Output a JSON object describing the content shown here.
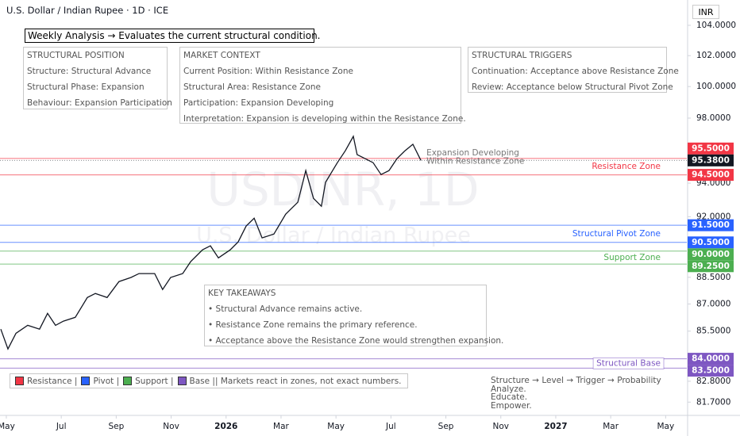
{
  "chart_data": {
    "type": "line",
    "title": "U.S. Dollar / Indian Rupee · 1D · ICE",
    "currency": "INR",
    "watermark": [
      "USDINR, 1D",
      "U.S. Dollar / Indian Rupee"
    ],
    "headline": "Weekly Analysis → Evaluates the current structural condition.",
    "color": "#131722",
    "x": [
      -0.2,
      0.06,
      0.35,
      0.78,
      1.21,
      1.5,
      1.79,
      2.08,
      2.51,
      2.95,
      3.24,
      3.67,
      4.1,
      4.54,
      4.83,
      5.4,
      5.69,
      5.98,
      6.42,
      6.71,
      7.14,
      7.43,
      7.72,
      8.15,
      8.44,
      8.73,
      9.02,
      9.31,
      9.74,
      10.17,
      10.61,
      10.9,
      11.18,
      11.47,
      11.62,
      12.05,
      12.34,
      12.63,
      12.77,
      13.06,
      13.35,
      13.64,
      13.93,
      14.22,
      14.51,
      14.8,
      15.09
    ],
    "values": [
      85.61,
      84.53,
      85.38,
      85.82,
      85.61,
      86.48,
      85.82,
      86.05,
      86.26,
      87.36,
      87.59,
      87.36,
      88.26,
      88.49,
      88.71,
      88.71,
      87.81,
      88.49,
      88.71,
      89.39,
      90.07,
      90.3,
      89.61,
      90.07,
      90.53,
      91.45,
      91.91,
      90.76,
      90.99,
      92.15,
      92.86,
      94.76,
      93.09,
      92.62,
      94.05,
      95.24,
      95.97,
      96.86,
      95.73,
      95.49,
      95.24,
      94.52,
      94.76,
      95.49,
      95.97,
      96.37,
      95.38
    ],
    "last_price": {
      "value": 95.38,
      "label": "95.3800"
    },
    "annotation": [
      "Expansion Developing",
      "Within Resistance Zone"
    ],
    "log_scale": true,
    "grid": false,
    "xlim": [
      -0.23,
      24.77
    ],
    "xticks": [
      {
        "value": 0,
        "label": "May"
      },
      {
        "value": 2,
        "label": "Jul"
      },
      {
        "value": 4,
        "label": "Sep"
      },
      {
        "value": 6,
        "label": "Nov"
      },
      {
        "value": 8,
        "label": "2026"
      },
      {
        "value": 10,
        "label": "Mar"
      },
      {
        "value": 12,
        "label": "May"
      },
      {
        "value": 14,
        "label": "Jul"
      },
      {
        "value": 16,
        "label": "Sep"
      },
      {
        "value": 18,
        "label": "Nov"
      },
      {
        "value": 20,
        "label": "2027"
      },
      {
        "value": 22,
        "label": "Mar"
      },
      {
        "value": 24,
        "label": "May"
      }
    ],
    "ylim": [
      81.05,
      105.7
    ],
    "yticks": [
      {
        "value": 104,
        "label": "104.0000"
      },
      {
        "value": 102,
        "label": "102.0000"
      },
      {
        "value": 100,
        "label": "100.0000"
      },
      {
        "value": 98,
        "label": "98.0000"
      },
      {
        "value": 94,
        "label": "94.0000"
      },
      {
        "value": 92,
        "label": "92.0000"
      },
      {
        "value": 88.5,
        "label": "88.5000"
      },
      {
        "value": 87,
        "label": "87.0000"
      },
      {
        "value": 85.5,
        "label": "85.5000"
      },
      {
        "value": 82.8,
        "label": "82.8000"
      },
      {
        "value": 81.7,
        "label": "81.7000"
      }
    ],
    "zones": [
      {
        "label": "Resistance Zone",
        "legend_label": "Resistance |",
        "color": "#f23645",
        "levels": [
          {
            "value": 95.5,
            "label": "95.5000"
          },
          {
            "value": 94.5,
            "label": "94.5000"
          }
        ]
      },
      {
        "label": "Structural Pivot Zone",
        "legend_label": "Pivot |",
        "color": "#2962ff",
        "levels": [
          {
            "value": 91.5,
            "label": "91.5000"
          },
          {
            "value": 90.5,
            "label": "90.5000"
          }
        ]
      },
      {
        "label": "Support Zone",
        "legend_label": "Support |",
        "color": "#4caf50",
        "levels": [
          {
            "value": 90,
            "label": "90.0000"
          },
          {
            "value": 89.25,
            "label": "89.2500"
          }
        ]
      },
      {
        "label": "Structural Base",
        "legend_label": "Base || Markets react in zones, not exact numbers.",
        "color": "#7e57c2",
        "levels": [
          {
            "value": 84,
            "label": "84.0000"
          },
          {
            "value": 83.5,
            "label": "83.5000"
          }
        ]
      }
    ],
    "panels": [
      {
        "title": "STRUCTURAL POSITION",
        "lines": [
          "Structure: Structural Advance",
          "Structural Phase: Expansion",
          "Behaviour: Expansion Participation"
        ]
      },
      {
        "title": "MARKET CONTEXT",
        "lines": [
          "Current Position: Within Resistance Zone",
          "Structural Area: Resistance Zone",
          "Participation: Expansion Developing",
          "Interpretation: Expansion is developing within the Resistance Zone."
        ]
      },
      {
        "title": "STRUCTURAL TRIGGERS",
        "lines": [
          "Continuation: Acceptance above Resistance Zone",
          "Review: Acceptance below Structural Pivot Zone"
        ]
      },
      {
        "title": "KEY TAKEAWAYS",
        "lines": [
          "• Structural Advance remains active.",
          "• Resistance Zone remains the primary reference.",
          "• Acceptance above the Resistance Zone would strengthen expansion."
        ]
      }
    ],
    "footer": [
      "Structure → Level → Trigger → Probability",
      "Analyze.",
      "Educate.",
      "Empower."
    ]
  }
}
